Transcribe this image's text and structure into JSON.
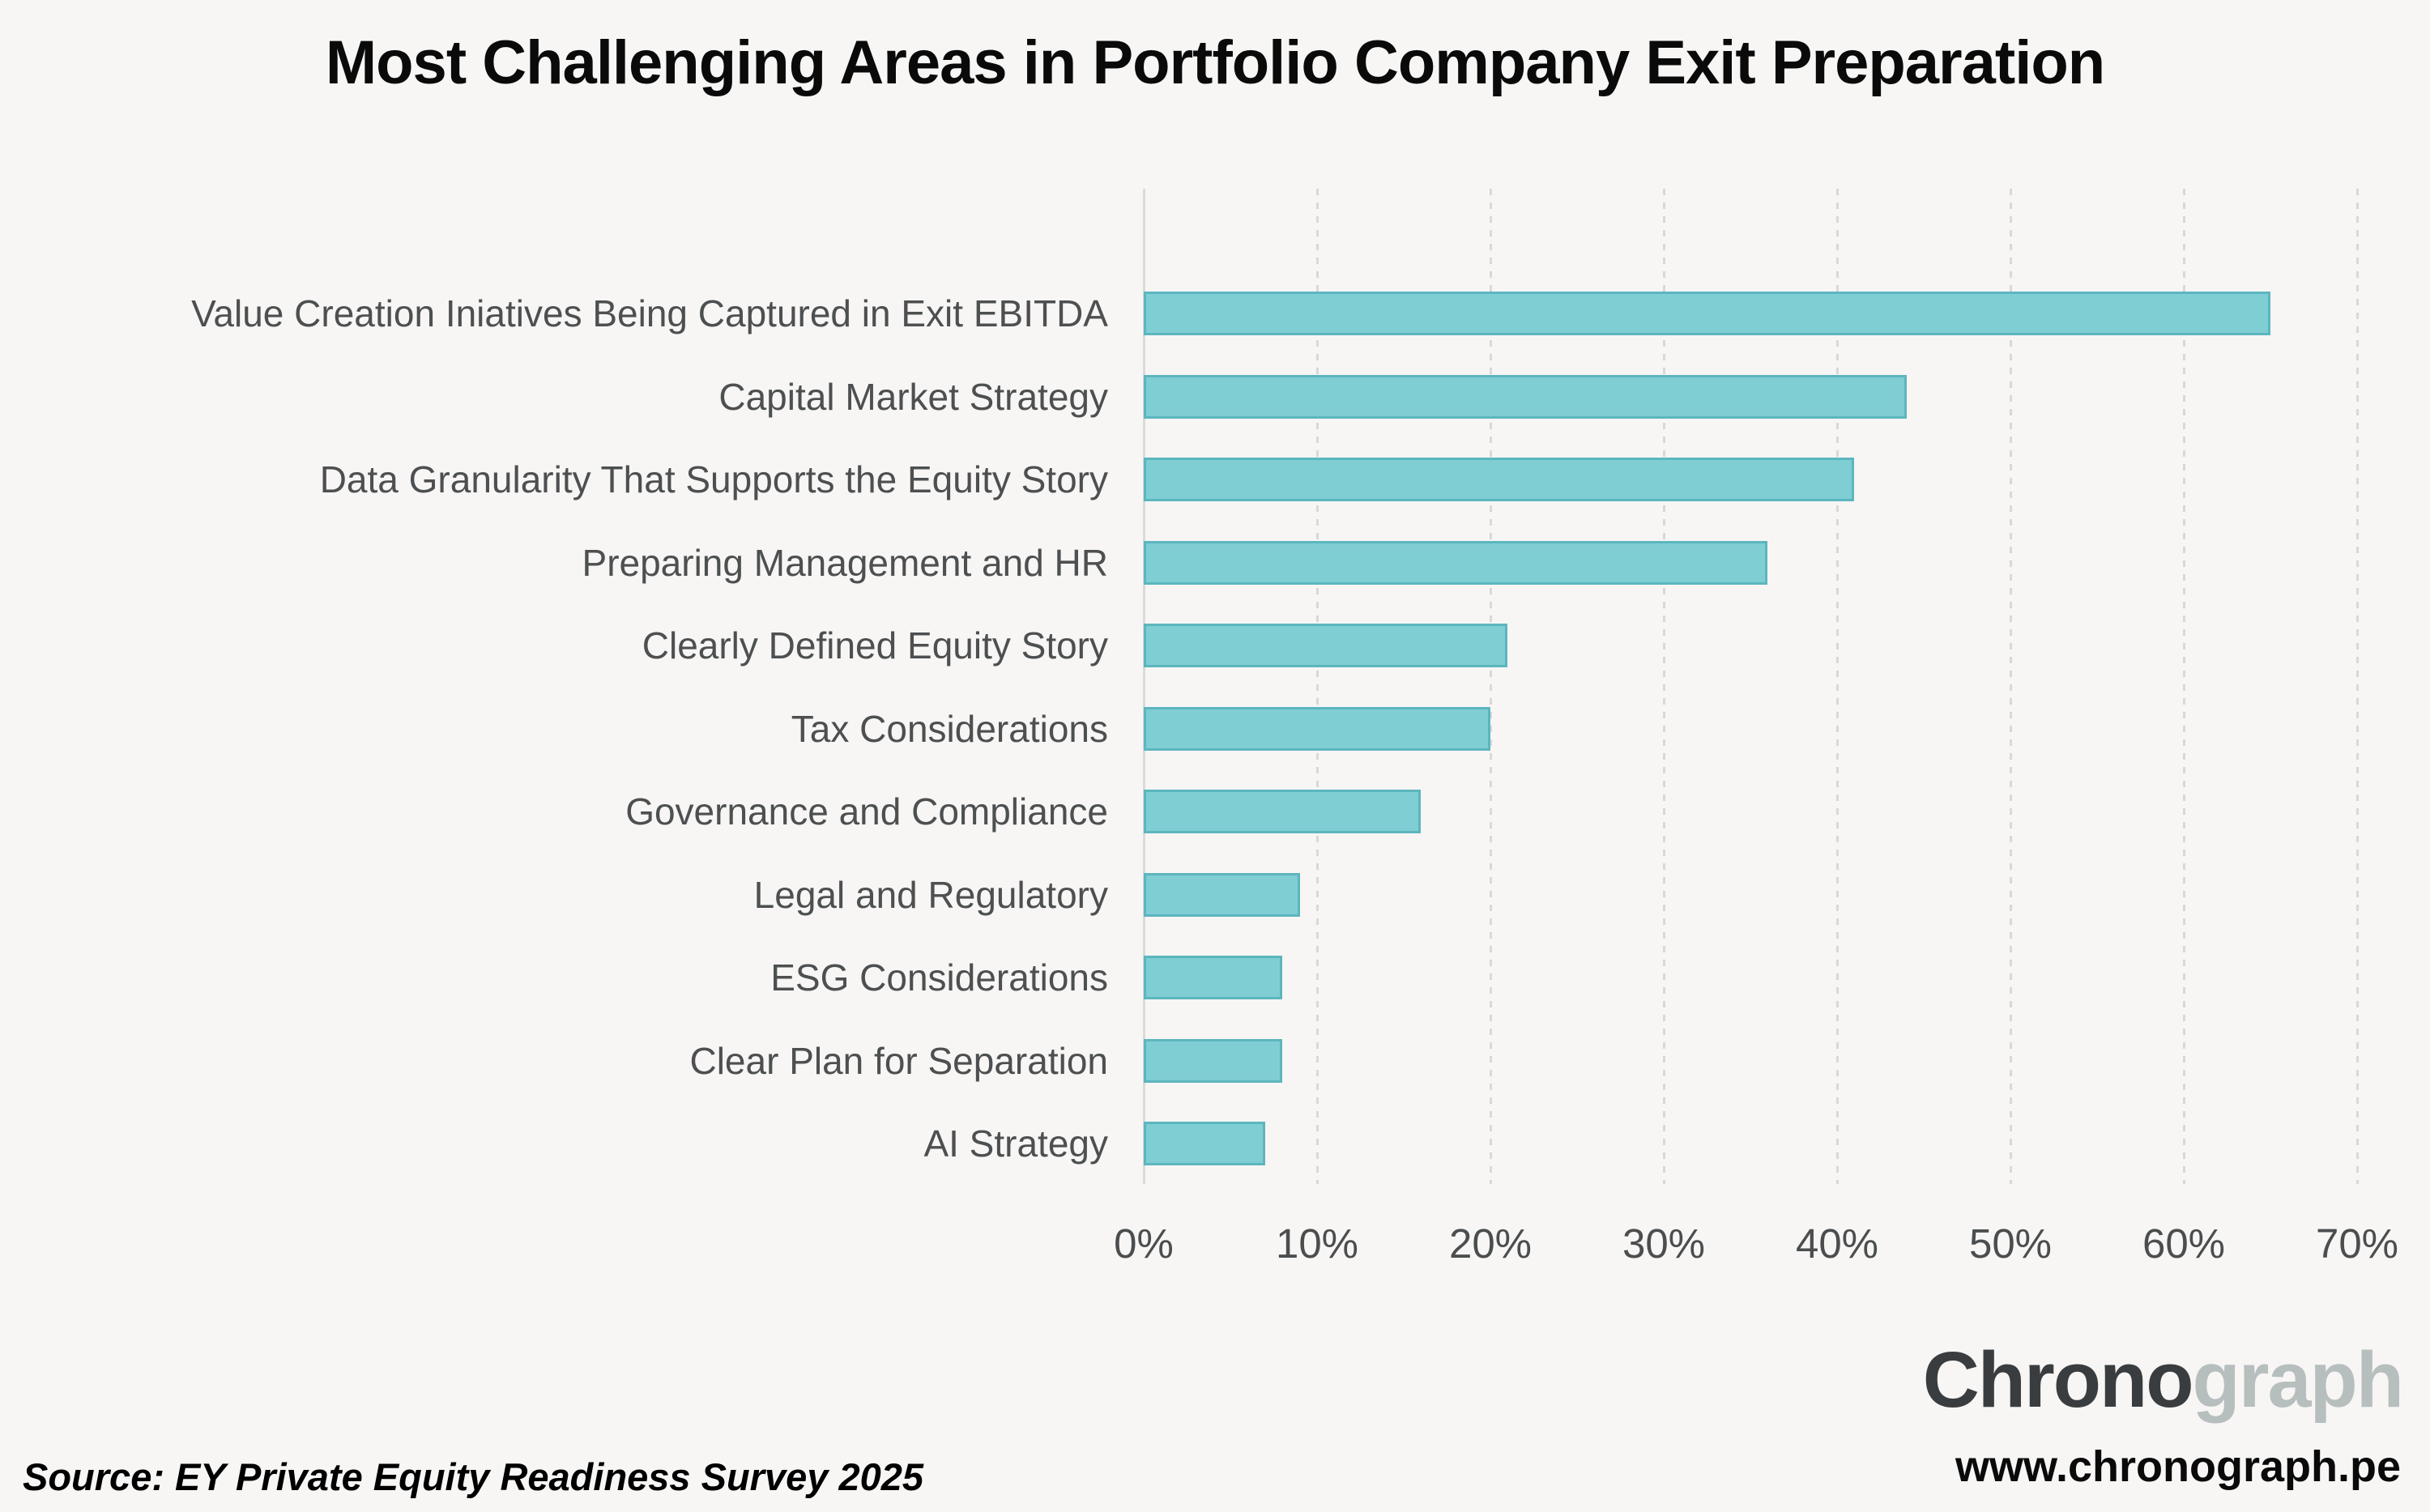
{
  "page": {
    "background_color": "#f7f6f5",
    "title": "Most Challenging Areas in Portfolio Company Exit Preparation",
    "source_note": "Source: EY Private Equity Readiness Survey 2025",
    "branding": {
      "logo_primary": "Chrono",
      "logo_secondary": "graph",
      "logo_primary_color": "#3a3d3f",
      "logo_secondary_color": "#b7bebe",
      "website": "www.chronograph.pe"
    }
  },
  "chart_data": {
    "type": "bar",
    "orientation": "horizontal",
    "title": "Most Challenging Areas in Portfolio Company Exit Preparation",
    "categories": [
      "Value Creation Iniatives Being Captured in Exit EBITDA",
      "Capital Market Strategy",
      "Data Granularity That Supports the Equity Story",
      "Preparing Management and HR",
      "Clearly Defined Equity Story",
      "Tax Considerations",
      "Governance and Compliance",
      "Legal and Regulatory",
      "ESG Considerations",
      "Clear Plan for Separation",
      "AI Strategy"
    ],
    "values": [
      65,
      44,
      41,
      36,
      21,
      20,
      16,
      9,
      8,
      8,
      7
    ],
    "unit": "%",
    "xlabel": "",
    "ylabel": "",
    "xlim": [
      0,
      70
    ],
    "x_ticks": [
      "0%",
      "10%",
      "20%",
      "30%",
      "40%",
      "50%",
      "60%",
      "70%"
    ],
    "grid": "vertical-dashed",
    "legend": "none",
    "bar_color": "#7fced4",
    "bar_border_color": "#5cb6be"
  }
}
